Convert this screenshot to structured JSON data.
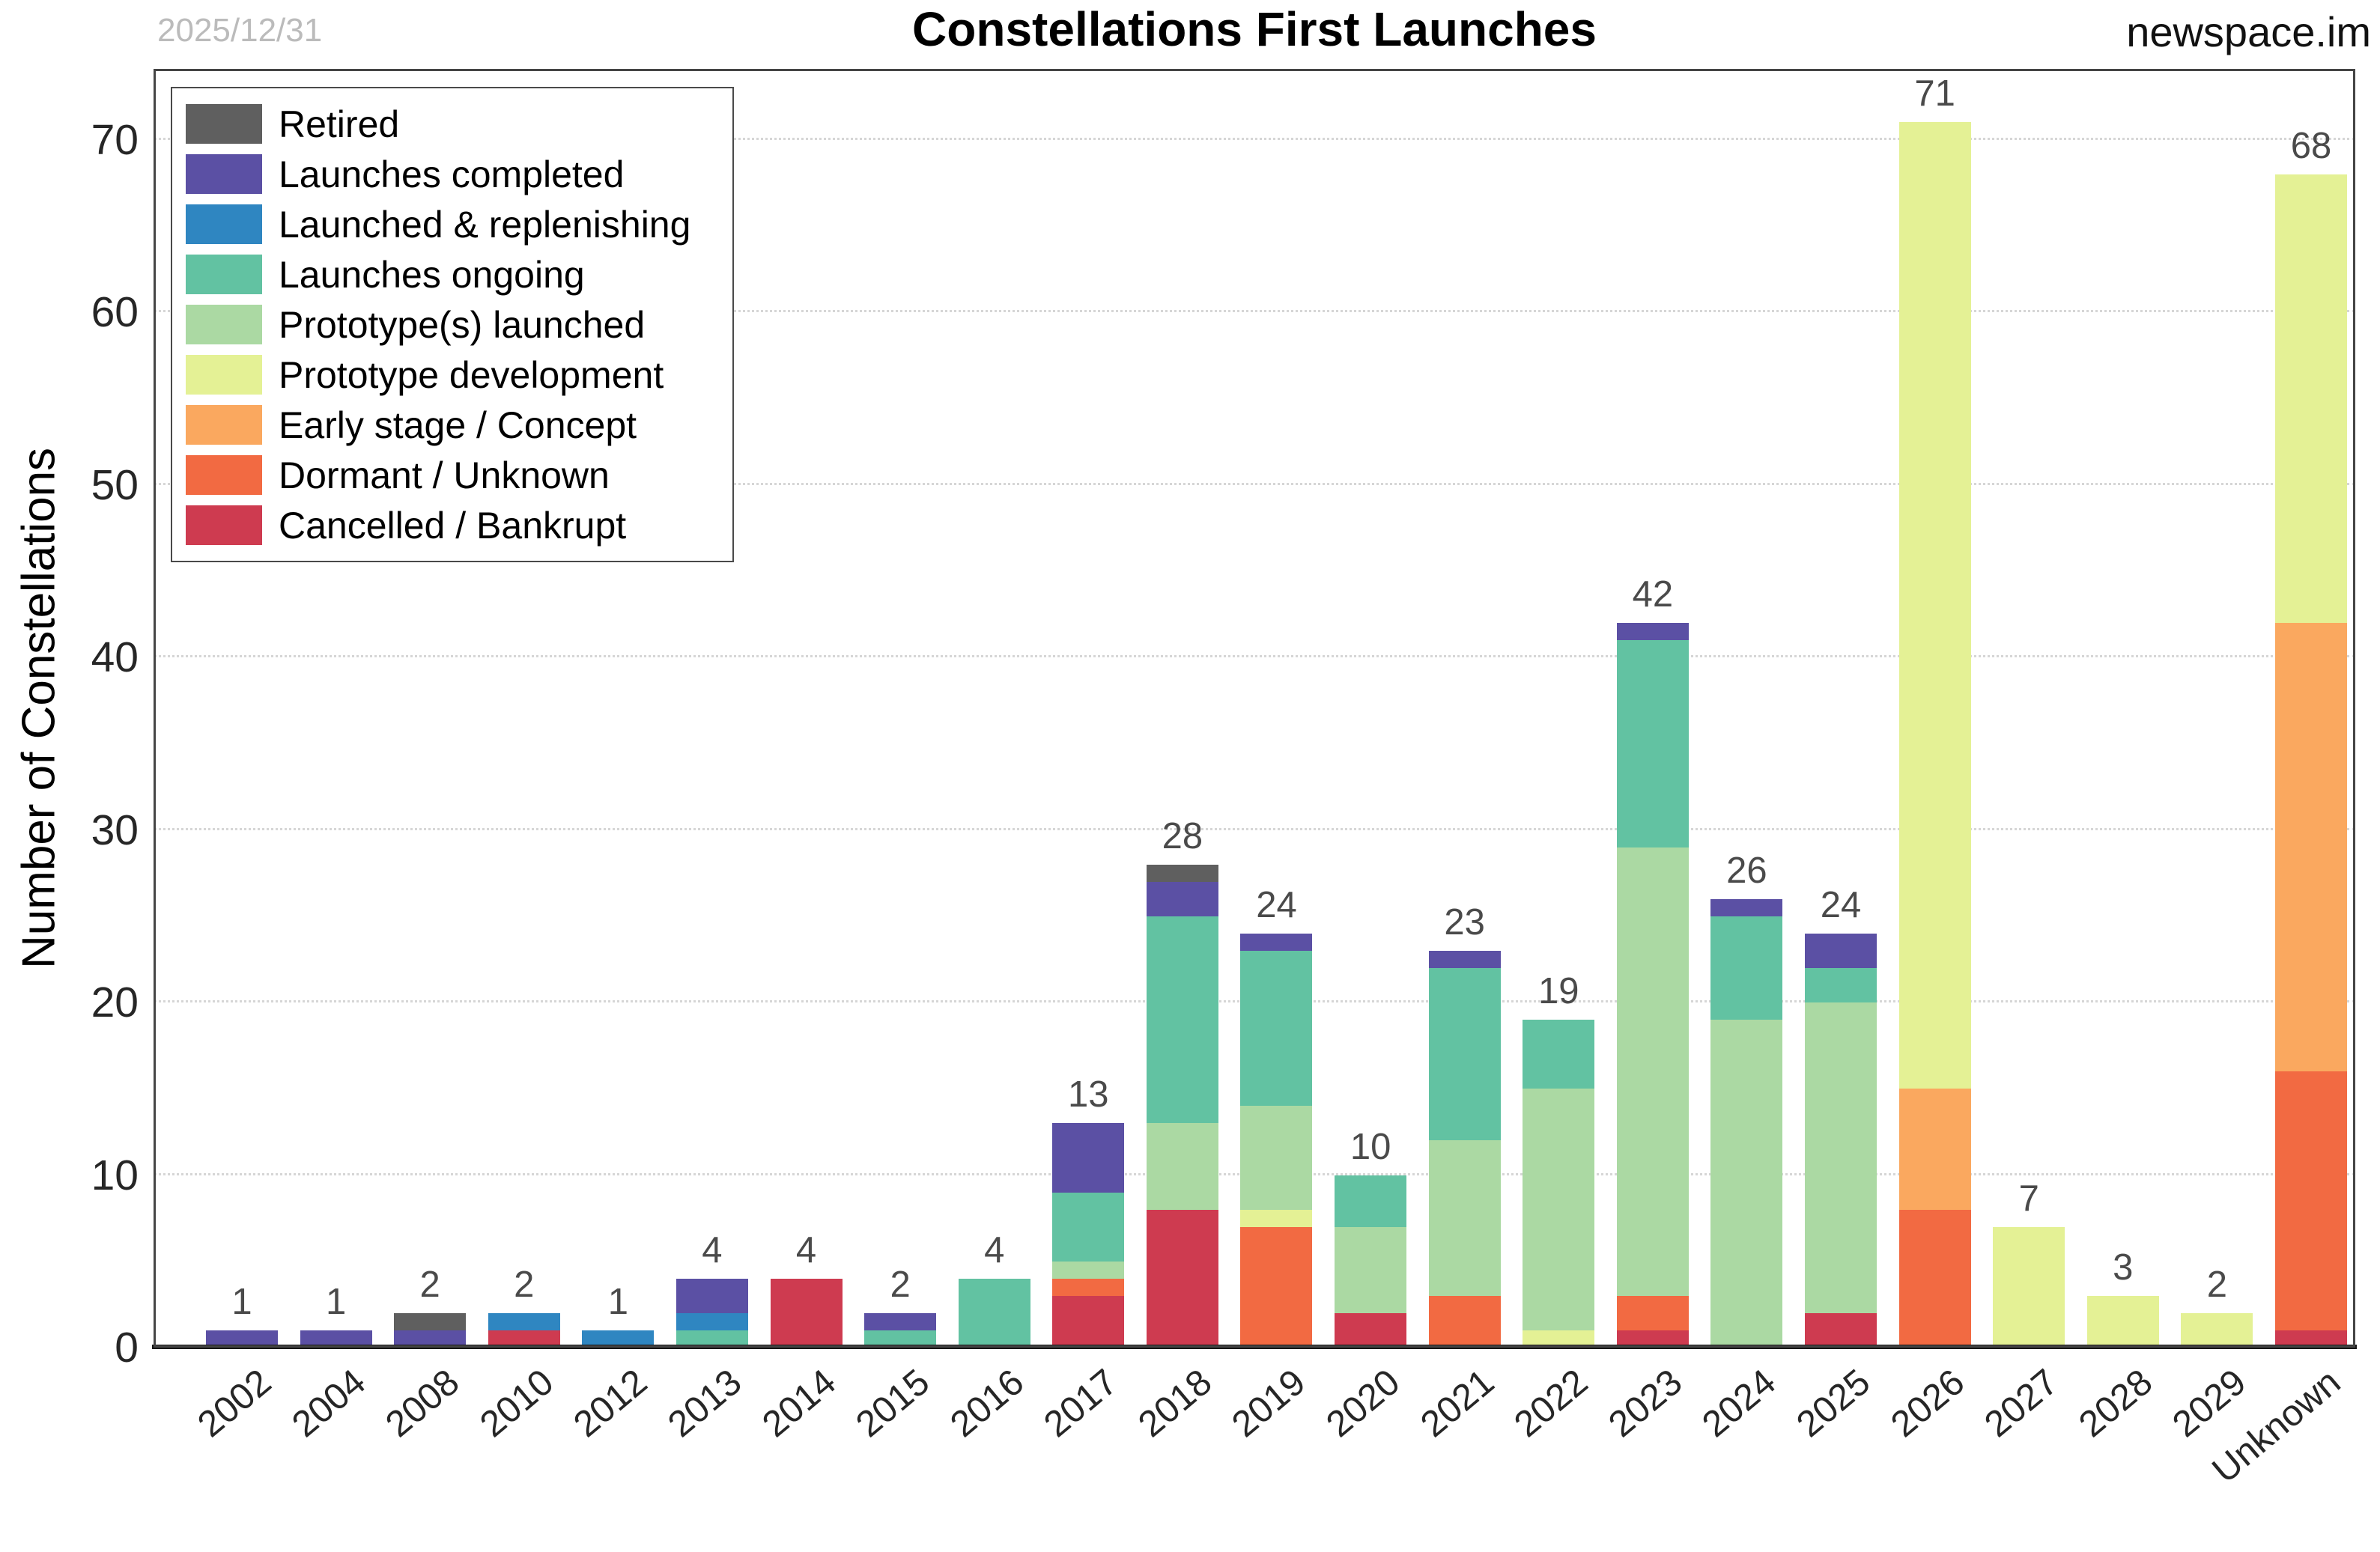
{
  "header": {
    "title": "Constellations First Launches",
    "watermark": "newspace.im",
    "date_note": "2025/12/31"
  },
  "legend": {
    "items": [
      {
        "label": "Retired",
        "color": "#5f5f5f"
      },
      {
        "label": "Launches completed",
        "color": "#5b50a4"
      },
      {
        "label": "Launched & replenishing",
        "color": "#2f86c1"
      },
      {
        "label": "Launches ongoing",
        "color": "#62c2a2"
      },
      {
        "label": "Prototype(s) launched",
        "color": "#abd9a3"
      },
      {
        "label": "Prototype development",
        "color": "#e4f195"
      },
      {
        "label": "Early stage / Concept",
        "color": "#faa85f"
      },
      {
        "label": "Dormant / Unknown",
        "color": "#f26a42"
      },
      {
        "label": "Cancelled / Bankrupt",
        "color": "#ce3b50"
      }
    ]
  },
  "chart_data": {
    "type": "bar",
    "stacked": true,
    "title": "Constellations First Launches",
    "xlabel": "",
    "ylabel": "Number of Constellations",
    "grid": "horizontal-dotted",
    "legend_position": "top-left",
    "ylim": [
      0,
      74.1
    ],
    "yticks": [
      0,
      10,
      20,
      30,
      40,
      50,
      60,
      70
    ],
    "categories": [
      "2002",
      "2004",
      "2008",
      "2010",
      "2012",
      "2013",
      "2014",
      "2015",
      "2016",
      "2017",
      "2018",
      "2019",
      "2020",
      "2021",
      "2022",
      "2023",
      "2024",
      "2025",
      "2026",
      "2027",
      "2028",
      "2029",
      "Unknown"
    ],
    "totals": [
      1,
      1,
      2,
      2,
      1,
      4,
      4,
      2,
      4,
      13,
      28,
      24,
      10,
      23,
      19,
      42,
      26,
      24,
      71,
      7,
      3,
      2,
      68
    ],
    "series": [
      {
        "name": "Cancelled / Bankrupt",
        "color": "#ce3b50",
        "values": [
          0,
          0,
          0,
          1,
          0,
          0,
          4,
          0,
          0,
          3,
          8,
          0,
          2,
          0,
          0,
          1,
          0,
          2,
          0,
          0,
          0,
          0,
          1
        ]
      },
      {
        "name": "Dormant / Unknown",
        "color": "#f26a42",
        "values": [
          0,
          0,
          0,
          0,
          0,
          0,
          0,
          0,
          0,
          1,
          0,
          7,
          0,
          3,
          0,
          2,
          0,
          0,
          8,
          0,
          0,
          0,
          15
        ]
      },
      {
        "name": "Early stage / Concept",
        "color": "#faa85f",
        "values": [
          0,
          0,
          0,
          0,
          0,
          0,
          0,
          0,
          0,
          0,
          0,
          0,
          0,
          0,
          0,
          0,
          0,
          0,
          7,
          0,
          0,
          0,
          26
        ]
      },
      {
        "name": "Prototype development",
        "color": "#e4f195",
        "values": [
          0,
          0,
          0,
          0,
          0,
          0,
          0,
          0,
          0,
          0,
          0,
          1,
          0,
          0,
          1,
          0,
          0,
          0,
          56,
          7,
          3,
          2,
          26
        ]
      },
      {
        "name": "Prototype(s) launched",
        "color": "#abd9a3",
        "values": [
          0,
          0,
          0,
          0,
          0,
          0,
          0,
          0,
          0,
          1,
          5,
          6,
          5,
          9,
          14,
          26,
          19,
          18,
          0,
          0,
          0,
          0,
          0
        ]
      },
      {
        "name": "Launches ongoing",
        "color": "#62c2a2",
        "values": [
          0,
          0,
          0,
          0,
          0,
          1,
          0,
          1,
          4,
          4,
          12,
          9,
          3,
          10,
          4,
          12,
          6,
          2,
          0,
          0,
          0,
          0,
          0
        ]
      },
      {
        "name": "Launched & replenishing",
        "color": "#2f86c1",
        "values": [
          0,
          0,
          0,
          1,
          1,
          1,
          0,
          0,
          0,
          0,
          0,
          0,
          0,
          0,
          0,
          0,
          0,
          0,
          0,
          0,
          0,
          0,
          0
        ]
      },
      {
        "name": "Launches completed",
        "color": "#5b50a4",
        "values": [
          1,
          1,
          1,
          0,
          0,
          2,
          0,
          1,
          0,
          4,
          2,
          1,
          0,
          1,
          0,
          1,
          1,
          2,
          0,
          0,
          0,
          0,
          0
        ]
      },
      {
        "name": "Retired",
        "color": "#5f5f5f",
        "values": [
          0,
          0,
          1,
          0,
          0,
          0,
          0,
          0,
          0,
          0,
          1,
          0,
          0,
          0,
          0,
          0,
          0,
          0,
          0,
          0,
          0,
          0,
          0
        ]
      }
    ]
  }
}
